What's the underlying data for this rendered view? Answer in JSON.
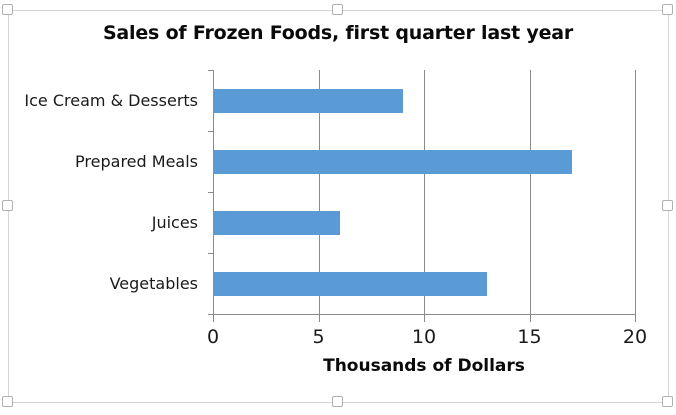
{
  "window": {
    "selection_handles": [
      "top-left",
      "top-middle",
      "top-right",
      "middle-left",
      "middle-right",
      "bottom-left",
      "bottom-middle",
      "bottom-right"
    ]
  },
  "chart_data": {
    "type": "bar",
    "orientation": "horizontal",
    "title": "Sales of Frozen Foods, first quarter last year",
    "categories": [
      "Ice Cream & Desserts",
      "Prepared Meals",
      "Juices",
      "Vegetables"
    ],
    "values": [
      9,
      17,
      6,
      13
    ],
    "xlabel": "Thousands of Dollars",
    "ylabel": "",
    "xlim": [
      0,
      20
    ],
    "xticks": [
      0,
      5,
      10,
      15,
      20
    ],
    "xtick_labels": [
      "0",
      "5",
      "10",
      "15",
      "20"
    ],
    "grid": "vertical-major",
    "legend": "none",
    "colors": {
      "bar": "#5B9BD5",
      "gridline": "#8A8A8A",
      "axis": "#8A8A8A",
      "text": "#1A1A1A",
      "selection_border": "#D5D5D5",
      "handle_border": "#B0B0B0",
      "handle_fill": "#FFFFFF"
    }
  }
}
